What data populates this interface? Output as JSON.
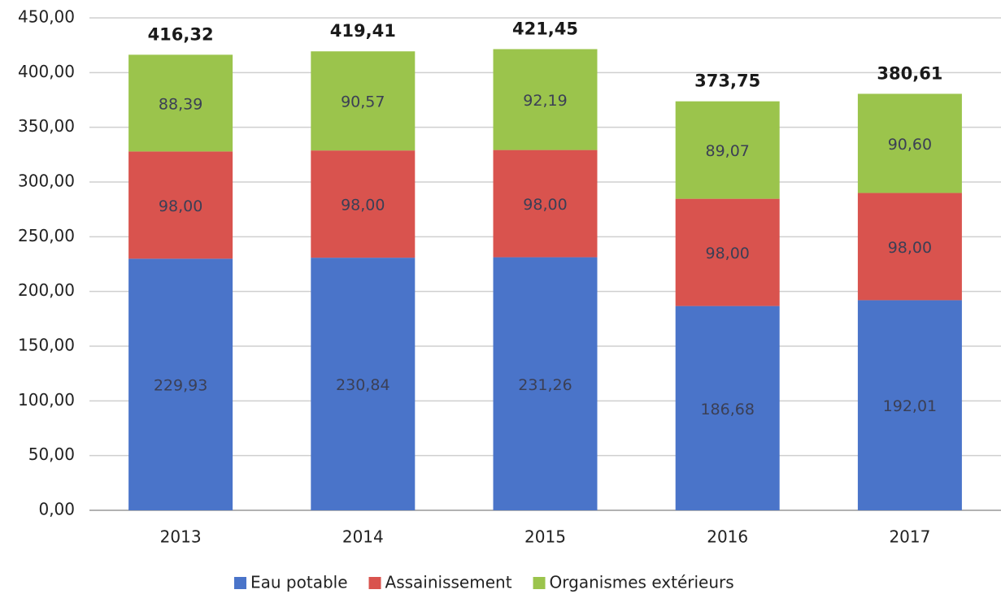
{
  "chart_data": {
    "type": "stacked_bar",
    "categories": [
      "2013",
      "2014",
      "2015",
      "2016",
      "2017"
    ],
    "series": [
      {
        "name": "Eau potable",
        "color": "#4a74c9",
        "values": [
          229.93,
          230.84,
          231.26,
          186.68,
          192.01
        ],
        "value_labels": [
          "229,93",
          "230,84",
          "231,26",
          "186,68",
          "192,01"
        ]
      },
      {
        "name": "Assainissement",
        "color": "#d9534e",
        "values": [
          98,
          98,
          98,
          98,
          98
        ],
        "value_labels": [
          "98,00",
          "98,00",
          "98,00",
          "98,00",
          "98,00"
        ]
      },
      {
        "name": "Organismes extérieurs",
        "color": "#9bc44c",
        "values": [
          88.39,
          90.57,
          92.19,
          89.07,
          90.6
        ],
        "value_labels": [
          "88,39",
          "90,57",
          "92,19",
          "89,07",
          "90,60"
        ]
      }
    ],
    "totals": [
      416.32,
      419.41,
      421.45,
      373.75,
      380.61
    ],
    "total_labels": [
      "416,32",
      "419,41",
      "421,45",
      "373,75",
      "380,61"
    ],
    "ylim": [
      0,
      450
    ],
    "yticks": [
      {
        "value": 0,
        "label": "0,00"
      },
      {
        "value": 50,
        "label": "50,00"
      },
      {
        "value": 100,
        "label": "100,00"
      },
      {
        "value": 150,
        "label": "150,00"
      },
      {
        "value": 200,
        "label": "200,00"
      },
      {
        "value": 250,
        "label": "250,00"
      },
      {
        "value": 300,
        "label": "300,00"
      },
      {
        "value": 350,
        "label": "350,00"
      },
      {
        "value": 400,
        "label": "400,00"
      },
      {
        "value": 450,
        "label": "450,00"
      }
    ],
    "grid": true,
    "legend": "bottom"
  }
}
